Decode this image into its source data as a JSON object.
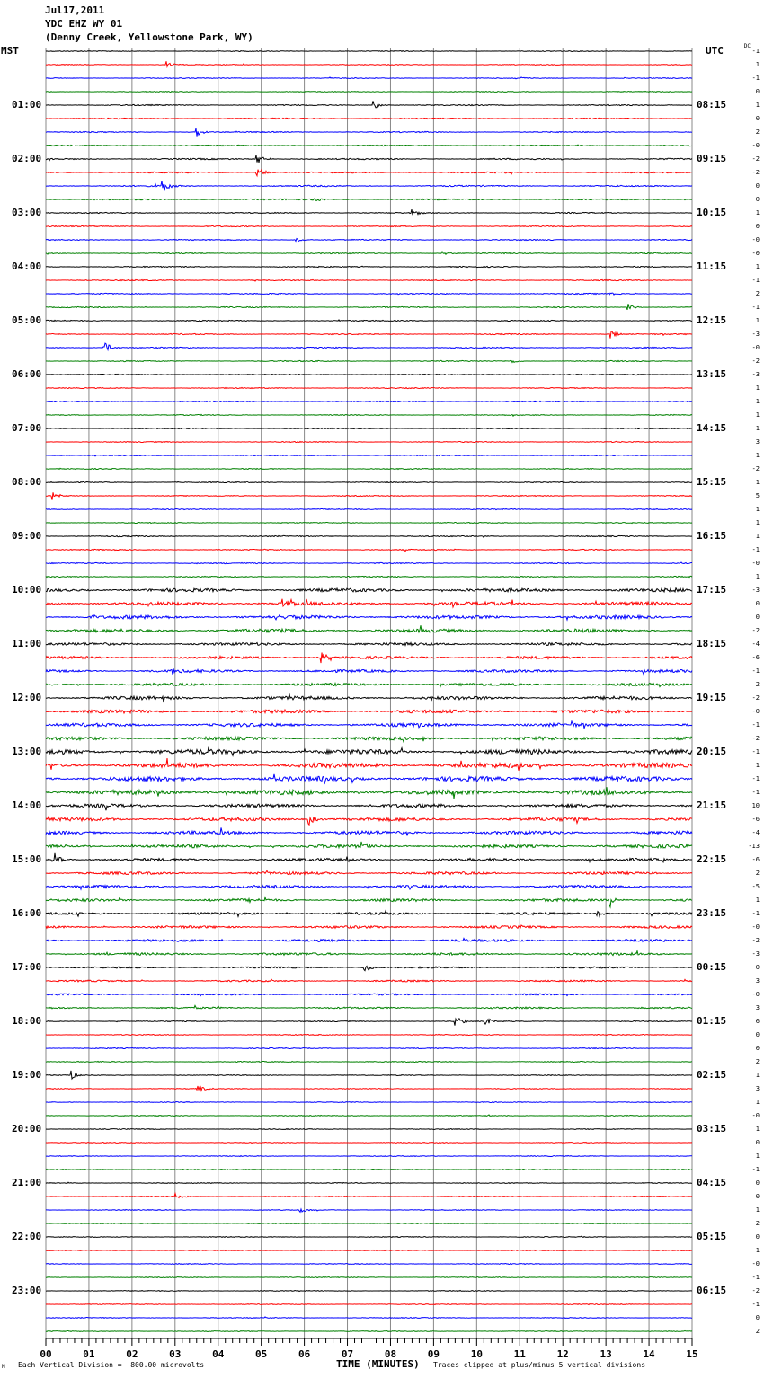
{
  "header": {
    "date": "Jul17,2011",
    "station": "YDC EHZ WY 01",
    "location": "(Denny Creek, Yellowstone Park, WY)"
  },
  "left_axis_label": "MST",
  "right_axis_label": "UTC",
  "dc_label": "DC",
  "footer": {
    "scale_mark": "M",
    "vertical_division": "Each Vertical Division =  800.00 microvolts",
    "xlabel": "TIME (MINUTES)",
    "clip_note": "Traces clipped at plus/minus 5 vertical divisions"
  },
  "chart_data": {
    "type": "line",
    "title": "Jul17,2011 YDC EHZ WY 01 (Denny Creek, Yellowstone Park, WY)",
    "xlabel": "TIME (MINUTES)",
    "xlim": [
      0,
      15
    ],
    "x_ticks": [
      "00",
      "01",
      "02",
      "03",
      "04",
      "05",
      "06",
      "07",
      "08",
      "09",
      "10",
      "11",
      "12",
      "13",
      "14",
      "15"
    ],
    "grid": true,
    "trace_colors": [
      "#000000",
      "#ff0000",
      "#0000ff",
      "#008000"
    ],
    "mst_hours": [
      "01:00",
      "02:00",
      "03:00",
      "04:00",
      "05:00",
      "06:00",
      "07:00",
      "08:00",
      "09:00",
      "10:00",
      "11:00",
      "12:00",
      "13:00",
      "14:00",
      "15:00",
      "16:00",
      "17:00",
      "18:00",
      "19:00",
      "20:00",
      "21:00",
      "22:00",
      "23:00"
    ],
    "utc_hours": [
      "08:15",
      "09:15",
      "10:15",
      "11:15",
      "12:15",
      "13:15",
      "14:15",
      "15:15",
      "16:15",
      "17:15",
      "18:15",
      "19:15",
      "20:15",
      "21:15",
      "22:15",
      "23:15",
      "00:15",
      "01:15",
      "02:15",
      "03:15",
      "04:15",
      "05:15",
      "06:15"
    ],
    "dc_offsets": [
      "-1",
      "1",
      "-1",
      "0",
      "1",
      "0",
      "2",
      "-0",
      "-2",
      "-2",
      "0",
      "0",
      "1",
      "0",
      "-0",
      "-0",
      "1",
      "-1",
      "2",
      "-1",
      "1",
      "-3",
      "-0",
      "-2",
      "-3",
      "1",
      "1",
      "1",
      "1",
      "3",
      "1",
      "-2",
      "1",
      "5",
      "1",
      "1",
      "1",
      "-1",
      "-0",
      "1",
      "-3",
      "0",
      "0",
      "-2",
      "-4",
      "-6",
      "-1",
      "2",
      "-2",
      "-0",
      "-1",
      "-2",
      "-1",
      "1",
      "-1",
      "-1",
      "10",
      "-6",
      "-4",
      "-13",
      "-6",
      "2",
      "-5",
      "1",
      "-1",
      "-0",
      "-2",
      "-3",
      "0",
      "3",
      "-0",
      "3",
      "6",
      "0",
      "0",
      "2",
      "1",
      "3",
      "1",
      "-0",
      "1",
      "0",
      "1",
      "-1",
      "0",
      "0",
      "1",
      "2",
      "0",
      "1",
      "-0",
      "-1",
      "-2",
      "-1",
      "0",
      "2"
    ],
    "noise_level_by_hour": [
      0.6,
      0.8,
      1.0,
      0.8,
      0.8,
      0.8,
      0.7,
      0.7,
      0.7,
      0.8,
      2.5,
      2.0,
      2.5,
      3.5,
      2.5,
      2.0,
      1.8,
      1.2,
      0.7,
      0.6,
      0.6,
      0.6,
      0.6,
      0.6
    ],
    "events": [
      {
        "trace": 1,
        "minute": 2.8,
        "amplitude": 4
      },
      {
        "trace": 2,
        "minute": 10.9,
        "amplitude": 3
      },
      {
        "trace": 6,
        "minute": 3.5,
        "amplitude": 5
      },
      {
        "trace": 4,
        "minute": 7.6,
        "amplitude": 5
      },
      {
        "trace": 8,
        "minute": 4.9,
        "amplitude": 7
      },
      {
        "trace": 9,
        "minute": 4.9,
        "amplitude": 8
      },
      {
        "trace": 10,
        "minute": 2.7,
        "amplitude": 8
      },
      {
        "trace": 11,
        "minute": 6.2,
        "amplitude": 4
      },
      {
        "trace": 12,
        "minute": 8.5,
        "amplitude": 4
      },
      {
        "trace": 14,
        "minute": 5.8,
        "amplitude": 3
      },
      {
        "trace": 15,
        "minute": 9.2,
        "amplitude": 4
      },
      {
        "trace": 18,
        "minute": 13.1,
        "amplitude": 3
      },
      {
        "trace": 19,
        "minute": 13.5,
        "amplitude": 5
      },
      {
        "trace": 21,
        "minute": 13.1,
        "amplitude": 6
      },
      {
        "trace": 22,
        "minute": 1.35,
        "amplitude": 8
      },
      {
        "trace": 23,
        "minute": 10.8,
        "amplitude": 3
      },
      {
        "trace": 33,
        "minute": 0.15,
        "amplitude": 5
      },
      {
        "trace": 41,
        "minute": 5.5,
        "amplitude": 7
      },
      {
        "trace": 42,
        "minute": 5.3,
        "amplitude": 6
      },
      {
        "trace": 45,
        "minute": 6.4,
        "amplitude": 6
      },
      {
        "trace": 46,
        "minute": 2.9,
        "amplitude": 6
      },
      {
        "trace": 57,
        "minute": 6.1,
        "amplitude": 7
      },
      {
        "trace": 59,
        "minute": 7.3,
        "amplitude": 7
      },
      {
        "trace": 60,
        "minute": 0.2,
        "amplitude": 8
      },
      {
        "trace": 63,
        "minute": 13.1,
        "amplitude": 8
      },
      {
        "trace": 64,
        "minute": 12.8,
        "amplitude": 6
      },
      {
        "trace": 68,
        "minute": 7.4,
        "amplitude": 6
      },
      {
        "trace": 72,
        "minute": 9.5,
        "amplitude": 8
      },
      {
        "trace": 72,
        "minute": 10.2,
        "amplitude": 6
      },
      {
        "trace": 76,
        "minute": 0.6,
        "amplitude": 5
      },
      {
        "trace": 77,
        "minute": 3.5,
        "amplitude": 6
      },
      {
        "trace": 85,
        "minute": 3.0,
        "amplitude": 5
      },
      {
        "trace": 86,
        "minute": 5.9,
        "amplitude": 4
      }
    ]
  }
}
